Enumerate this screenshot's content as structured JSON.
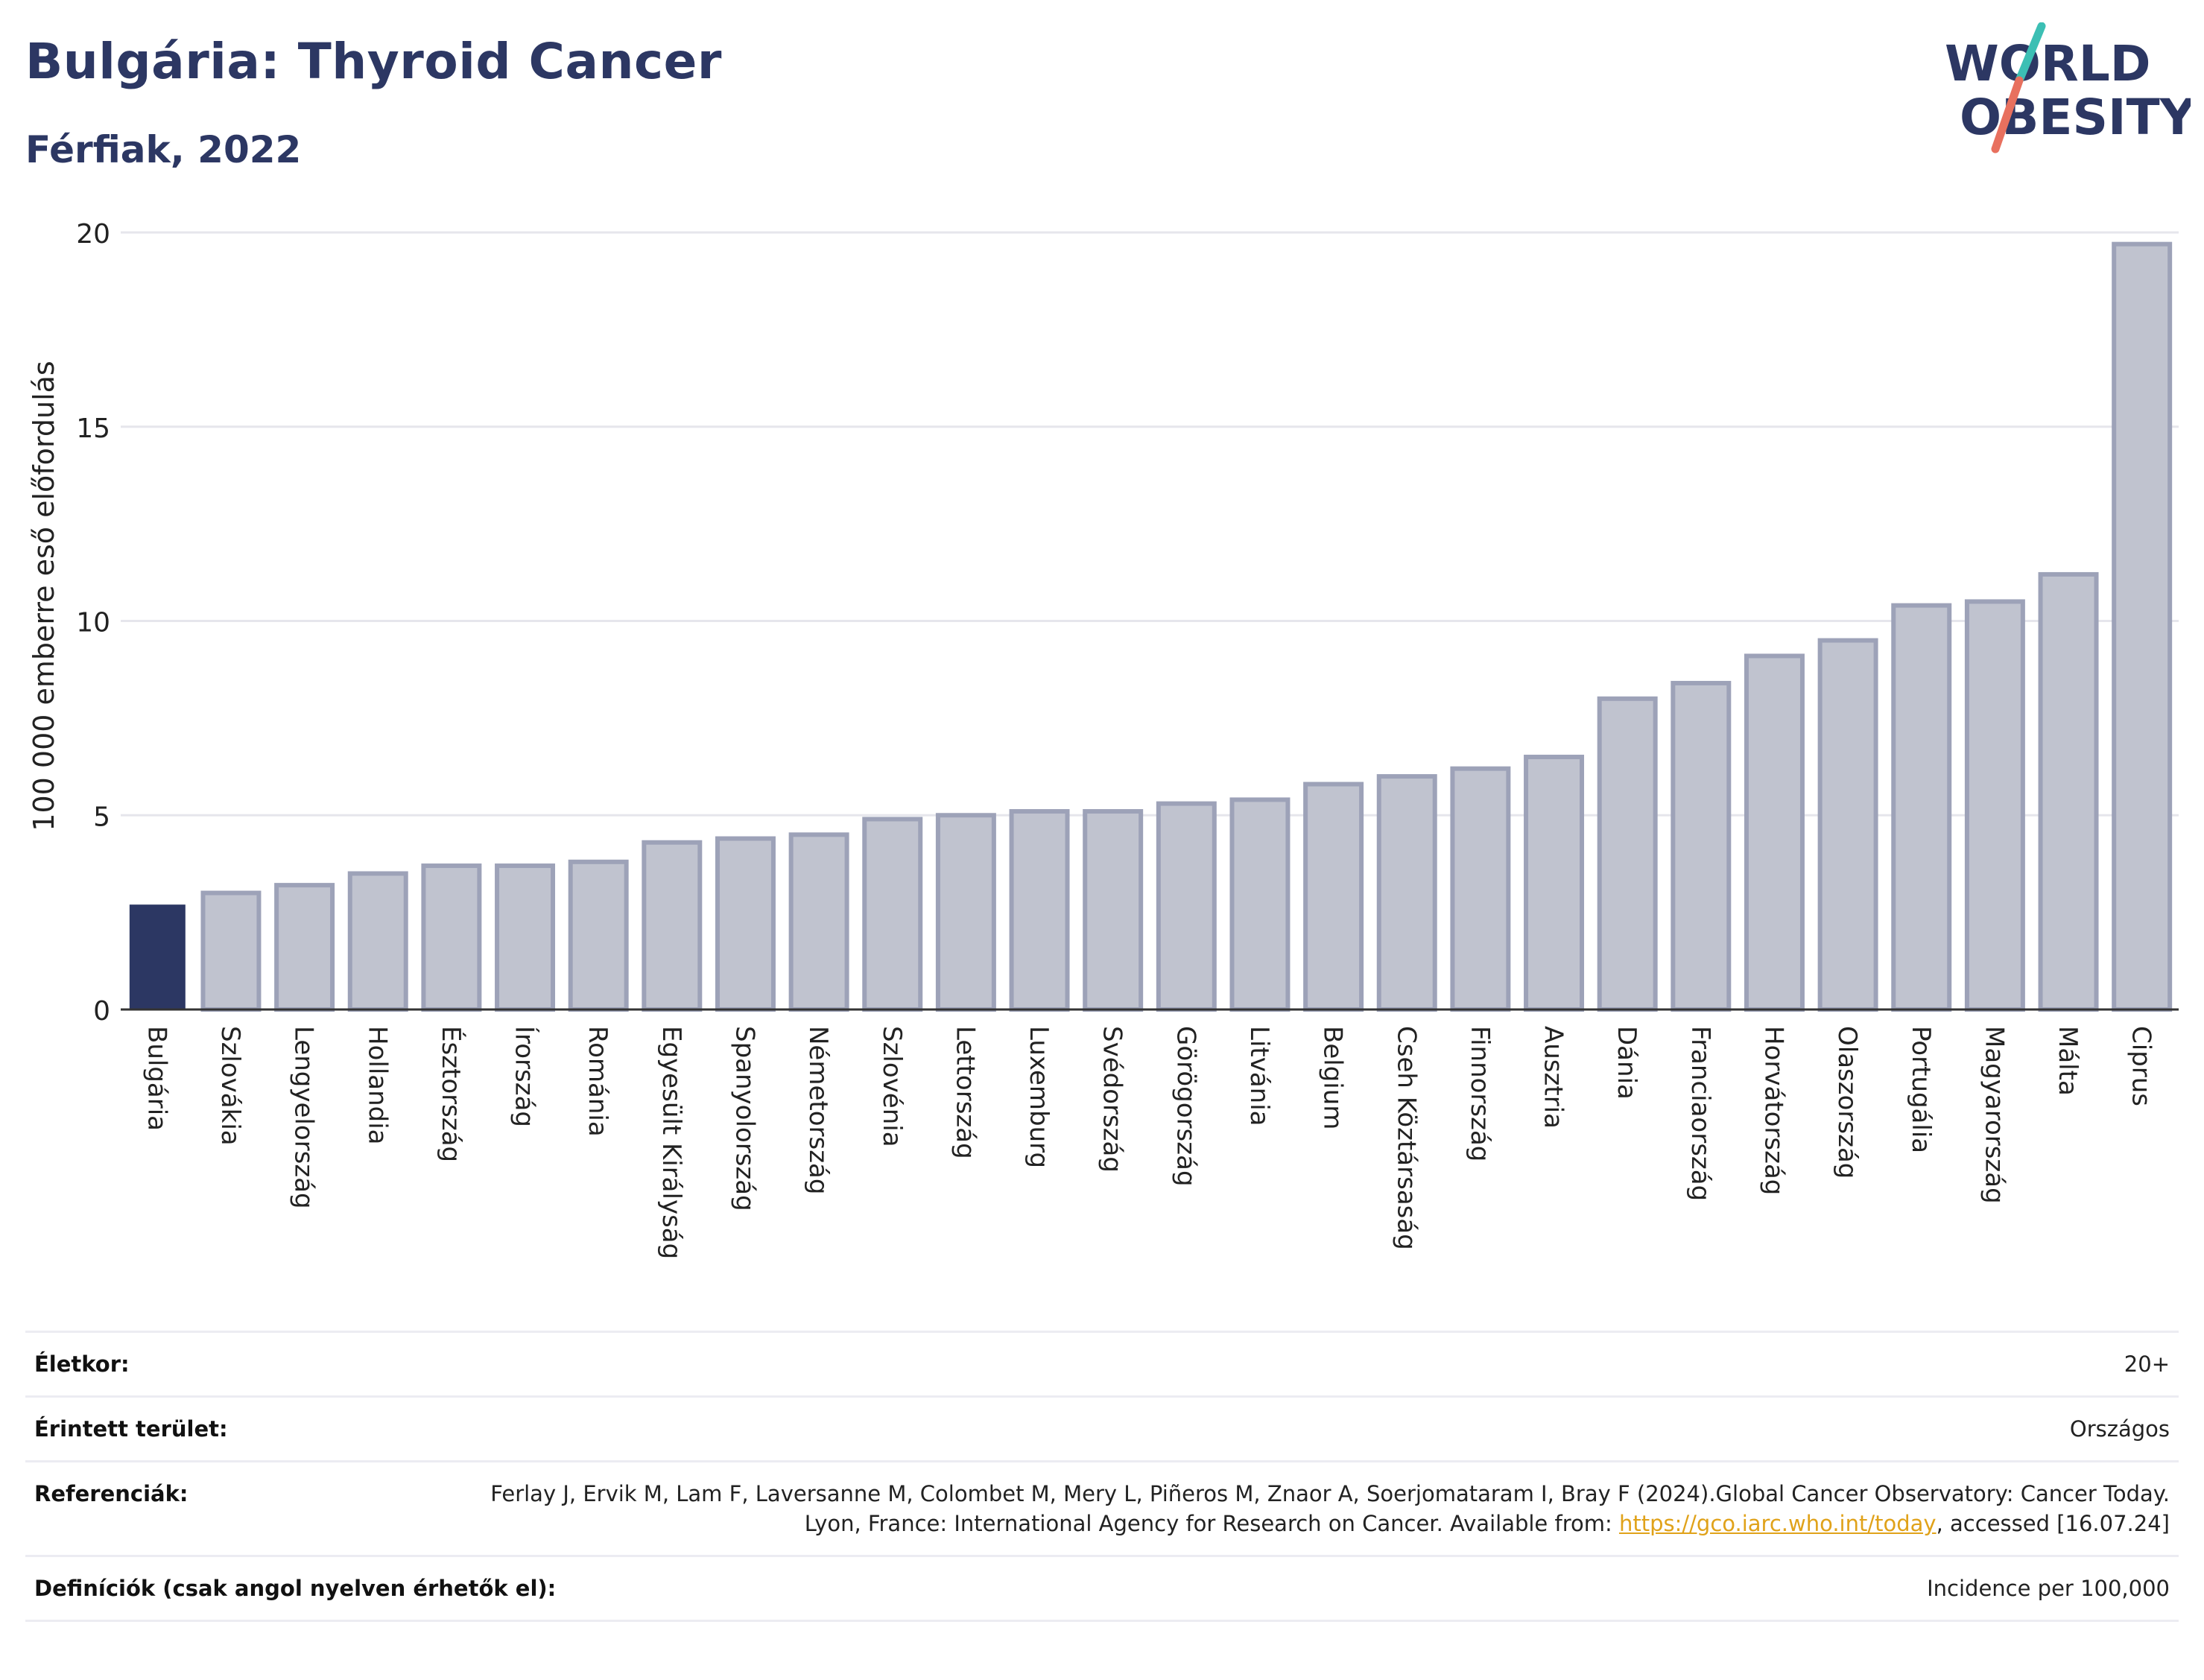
{
  "header": {
    "title": "Bulgária: Thyroid Cancer",
    "subtitle": "Férfiak, 2022"
  },
  "logo": {
    "line1": "WORLD",
    "line2": "OBESITY",
    "text_color": "#2c3763",
    "slash_colors": [
      "#3cbfb4",
      "#e8705e"
    ]
  },
  "colors": {
    "highlight_bar": "#2c3763",
    "other_bar_fill": "#c0c3cf",
    "other_bar_stroke": "#9da2b8",
    "gridline": "#e6e6ec",
    "axis": "#333333"
  },
  "chart_data": {
    "type": "bar",
    "categories": [
      "Bulgária",
      "Szlovákia",
      "Lengyelország",
      "Hollandia",
      "Észtország",
      "Írország",
      "Románia",
      "Egyesült Királyság",
      "Spanyolország",
      "Németország",
      "Szlovénia",
      "Lettország",
      "Luxemburg",
      "Svédország",
      "Görögország",
      "Litvánia",
      "Belgium",
      "Cseh Köztársaság",
      "Finnország",
      "Ausztria",
      "Dánia",
      "Franciaország",
      "Horvátország",
      "Olaszország",
      "Portugália",
      "Magyarország",
      "Málta",
      "Ciprus"
    ],
    "values": [
      2.7,
      3.0,
      3.2,
      3.5,
      3.7,
      3.7,
      3.8,
      4.3,
      4.4,
      4.5,
      4.9,
      5.0,
      5.1,
      5.1,
      5.3,
      5.4,
      5.8,
      6.0,
      6.2,
      6.5,
      8.0,
      8.4,
      9.1,
      9.5,
      10.4,
      10.5,
      11.2,
      19.7
    ],
    "highlight": "Bulgária",
    "ylabel": "100 000 emberre eső előfordulás",
    "xlabel": "",
    "ylim": [
      0,
      20
    ],
    "yticks": [
      0,
      5,
      10,
      15,
      20
    ],
    "grid": true
  },
  "info": {
    "age_label": "Életkor:",
    "age_value": "20+",
    "area_label": "Érintett terület:",
    "area_value": "Országos",
    "ref_label": "Referenciák:",
    "ref_text": "Ferlay J, Ervik M, Lam F, Laversanne M, Colombet M, Mery L, Piñeros M, Znaor A, Soerjomataram I, Bray F (2024).Global Cancer Observatory: Cancer Today. Lyon, France: International Agency for Research on Cancer. Available from:",
    "ref_link": "https://gco.iarc.who.int/today",
    "ref_suffix": ", accessed [16.07.24]",
    "def_label": "Definíciók (csak angol nyelven érhetők el):",
    "def_value": "Incidence per 100,000"
  }
}
